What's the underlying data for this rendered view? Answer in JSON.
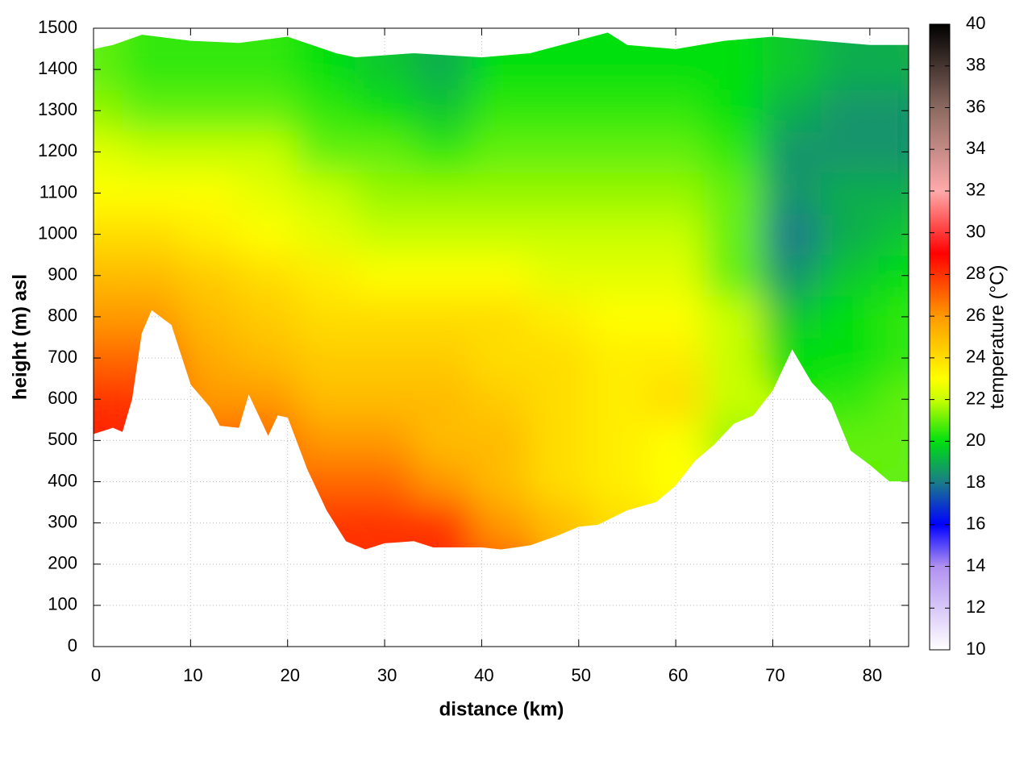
{
  "chart_data": {
    "type": "heatmap",
    "xlabel": "distance (km)",
    "ylabel": "height (m) asl",
    "zlabel": "temperature (°C)",
    "xlim": [
      0,
      84
    ],
    "xticks": [
      0,
      10,
      20,
      30,
      40,
      50,
      60,
      70,
      80
    ],
    "ylim": [
      0,
      1500
    ],
    "yticks": [
      0,
      100,
      200,
      300,
      400,
      500,
      600,
      700,
      800,
      900,
      1000,
      1100,
      1200,
      1300,
      1400,
      1500
    ],
    "zlim": [
      10,
      40
    ],
    "zticks": [
      10,
      12,
      14,
      16,
      18,
      20,
      22,
      24,
      26,
      28,
      30,
      32,
      34,
      36,
      38,
      40
    ],
    "grid": true,
    "colormap": [
      {
        "value": 10,
        "color": "#ffffff"
      },
      {
        "value": 14,
        "color": "#b090f0"
      },
      {
        "value": 16,
        "color": "#0000ff"
      },
      {
        "value": 18,
        "color": "#1a7a8a"
      },
      {
        "value": 20,
        "color": "#00e010"
      },
      {
        "value": 22,
        "color": "#c8ff00"
      },
      {
        "value": 23,
        "color": "#ffff00"
      },
      {
        "value": 26,
        "color": "#ff9900"
      },
      {
        "value": 29,
        "color": "#ff0000"
      },
      {
        "value": 32,
        "color": "#ffaaaa"
      },
      {
        "value": 36,
        "color": "#8a6a60"
      },
      {
        "value": 40,
        "color": "#000000"
      }
    ],
    "x": [
      0,
      6,
      12,
      18,
      24,
      30,
      36,
      42,
      48,
      54,
      60,
      66,
      72,
      78,
      84
    ],
    "y": [
      200,
      300,
      400,
      500,
      600,
      700,
      800,
      900,
      1000,
      1100,
      1200,
      1300,
      1400
    ],
    "z": [
      [
        null,
        null,
        null,
        null,
        null,
        28,
        28,
        27,
        null,
        null,
        null,
        null,
        null,
        null,
        null
      ],
      [
        null,
        null,
        null,
        null,
        28,
        28,
        28,
        26,
        25,
        24,
        null,
        null,
        null,
        null,
        null
      ],
      [
        null,
        null,
        null,
        null,
        27,
        27,
        26,
        25,
        24,
        23.5,
        23,
        null,
        null,
        null,
        21
      ],
      [
        28.5,
        null,
        27,
        27,
        26,
        26,
        25,
        25,
        24,
        23.5,
        23,
        21.5,
        null,
        21,
        21
      ],
      [
        28,
        28,
        26,
        26,
        25,
        25,
        25,
        24.5,
        24,
        23.5,
        24,
        22,
        null,
        20.5,
        21
      ],
      [
        27,
        27,
        25.5,
        25,
        24.5,
        24.5,
        24.5,
        24,
        24,
        23.5,
        23.5,
        22,
        20,
        20,
        20.5
      ],
      [
        26,
        26,
        25,
        24.5,
        24,
        24,
        24,
        24,
        23.5,
        23,
        23,
        22,
        19.5,
        20,
        20.5
      ],
      [
        25,
        25,
        24.5,
        24,
        23.5,
        23,
        23,
        23,
        22.5,
        22.5,
        22.5,
        21,
        18.5,
        19.5,
        20
      ],
      [
        24,
        24,
        23.5,
        23,
        22.5,
        22,
        22,
        22,
        22,
        22,
        22,
        21,
        18,
        19,
        19.5
      ],
      [
        23,
        23,
        23,
        22.5,
        22,
        21.5,
        21.5,
        21.5,
        21.5,
        21.5,
        21.5,
        21,
        18.5,
        19,
        19
      ],
      [
        22.5,
        22,
        22,
        22,
        21,
        21,
        20.5,
        21,
        21,
        21,
        21,
        20.5,
        18.5,
        18.5,
        18.5
      ],
      [
        21.5,
        21,
        21,
        21,
        20.5,
        20,
        19.5,
        20.5,
        20.5,
        20.5,
        20.5,
        20,
        19,
        18.5,
        18.5
      ],
      [
        21,
        20.5,
        20.5,
        20.5,
        20,
        19.5,
        19,
        20,
        20,
        20,
        20,
        20,
        19.5,
        19,
        19
      ]
    ],
    "surface_x": [
      0,
      2,
      3,
      4,
      5,
      6,
      8,
      10,
      12,
      13,
      15,
      16,
      18,
      19,
      20,
      22,
      24,
      26,
      28,
      30,
      33,
      35,
      40,
      42,
      45,
      48,
      50,
      52,
      55,
      58,
      60,
      62,
      64,
      66,
      68,
      70,
      72,
      74,
      76,
      78,
      80,
      82,
      84
    ],
    "surface": [
      515,
      530,
      520,
      600,
      760,
      815,
      780,
      635,
      580,
      535,
      530,
      610,
      510,
      560,
      555,
      430,
      330,
      255,
      235,
      250,
      255,
      240,
      240,
      235,
      245,
      270,
      290,
      295,
      330,
      350,
      390,
      450,
      490,
      540,
      560,
      620,
      720,
      640,
      590,
      475,
      440,
      400,
      400
    ],
    "ceiling_x": [
      0,
      2,
      5,
      10,
      15,
      20,
      25,
      27,
      33,
      40,
      45,
      53,
      55,
      60,
      65,
      70,
      75,
      80,
      84
    ],
    "ceiling": [
      1450,
      1460,
      1485,
      1470,
      1465,
      1480,
      1440,
      1430,
      1440,
      1430,
      1440,
      1490,
      1460,
      1450,
      1470,
      1480,
      1470,
      1460,
      1460
    ]
  }
}
